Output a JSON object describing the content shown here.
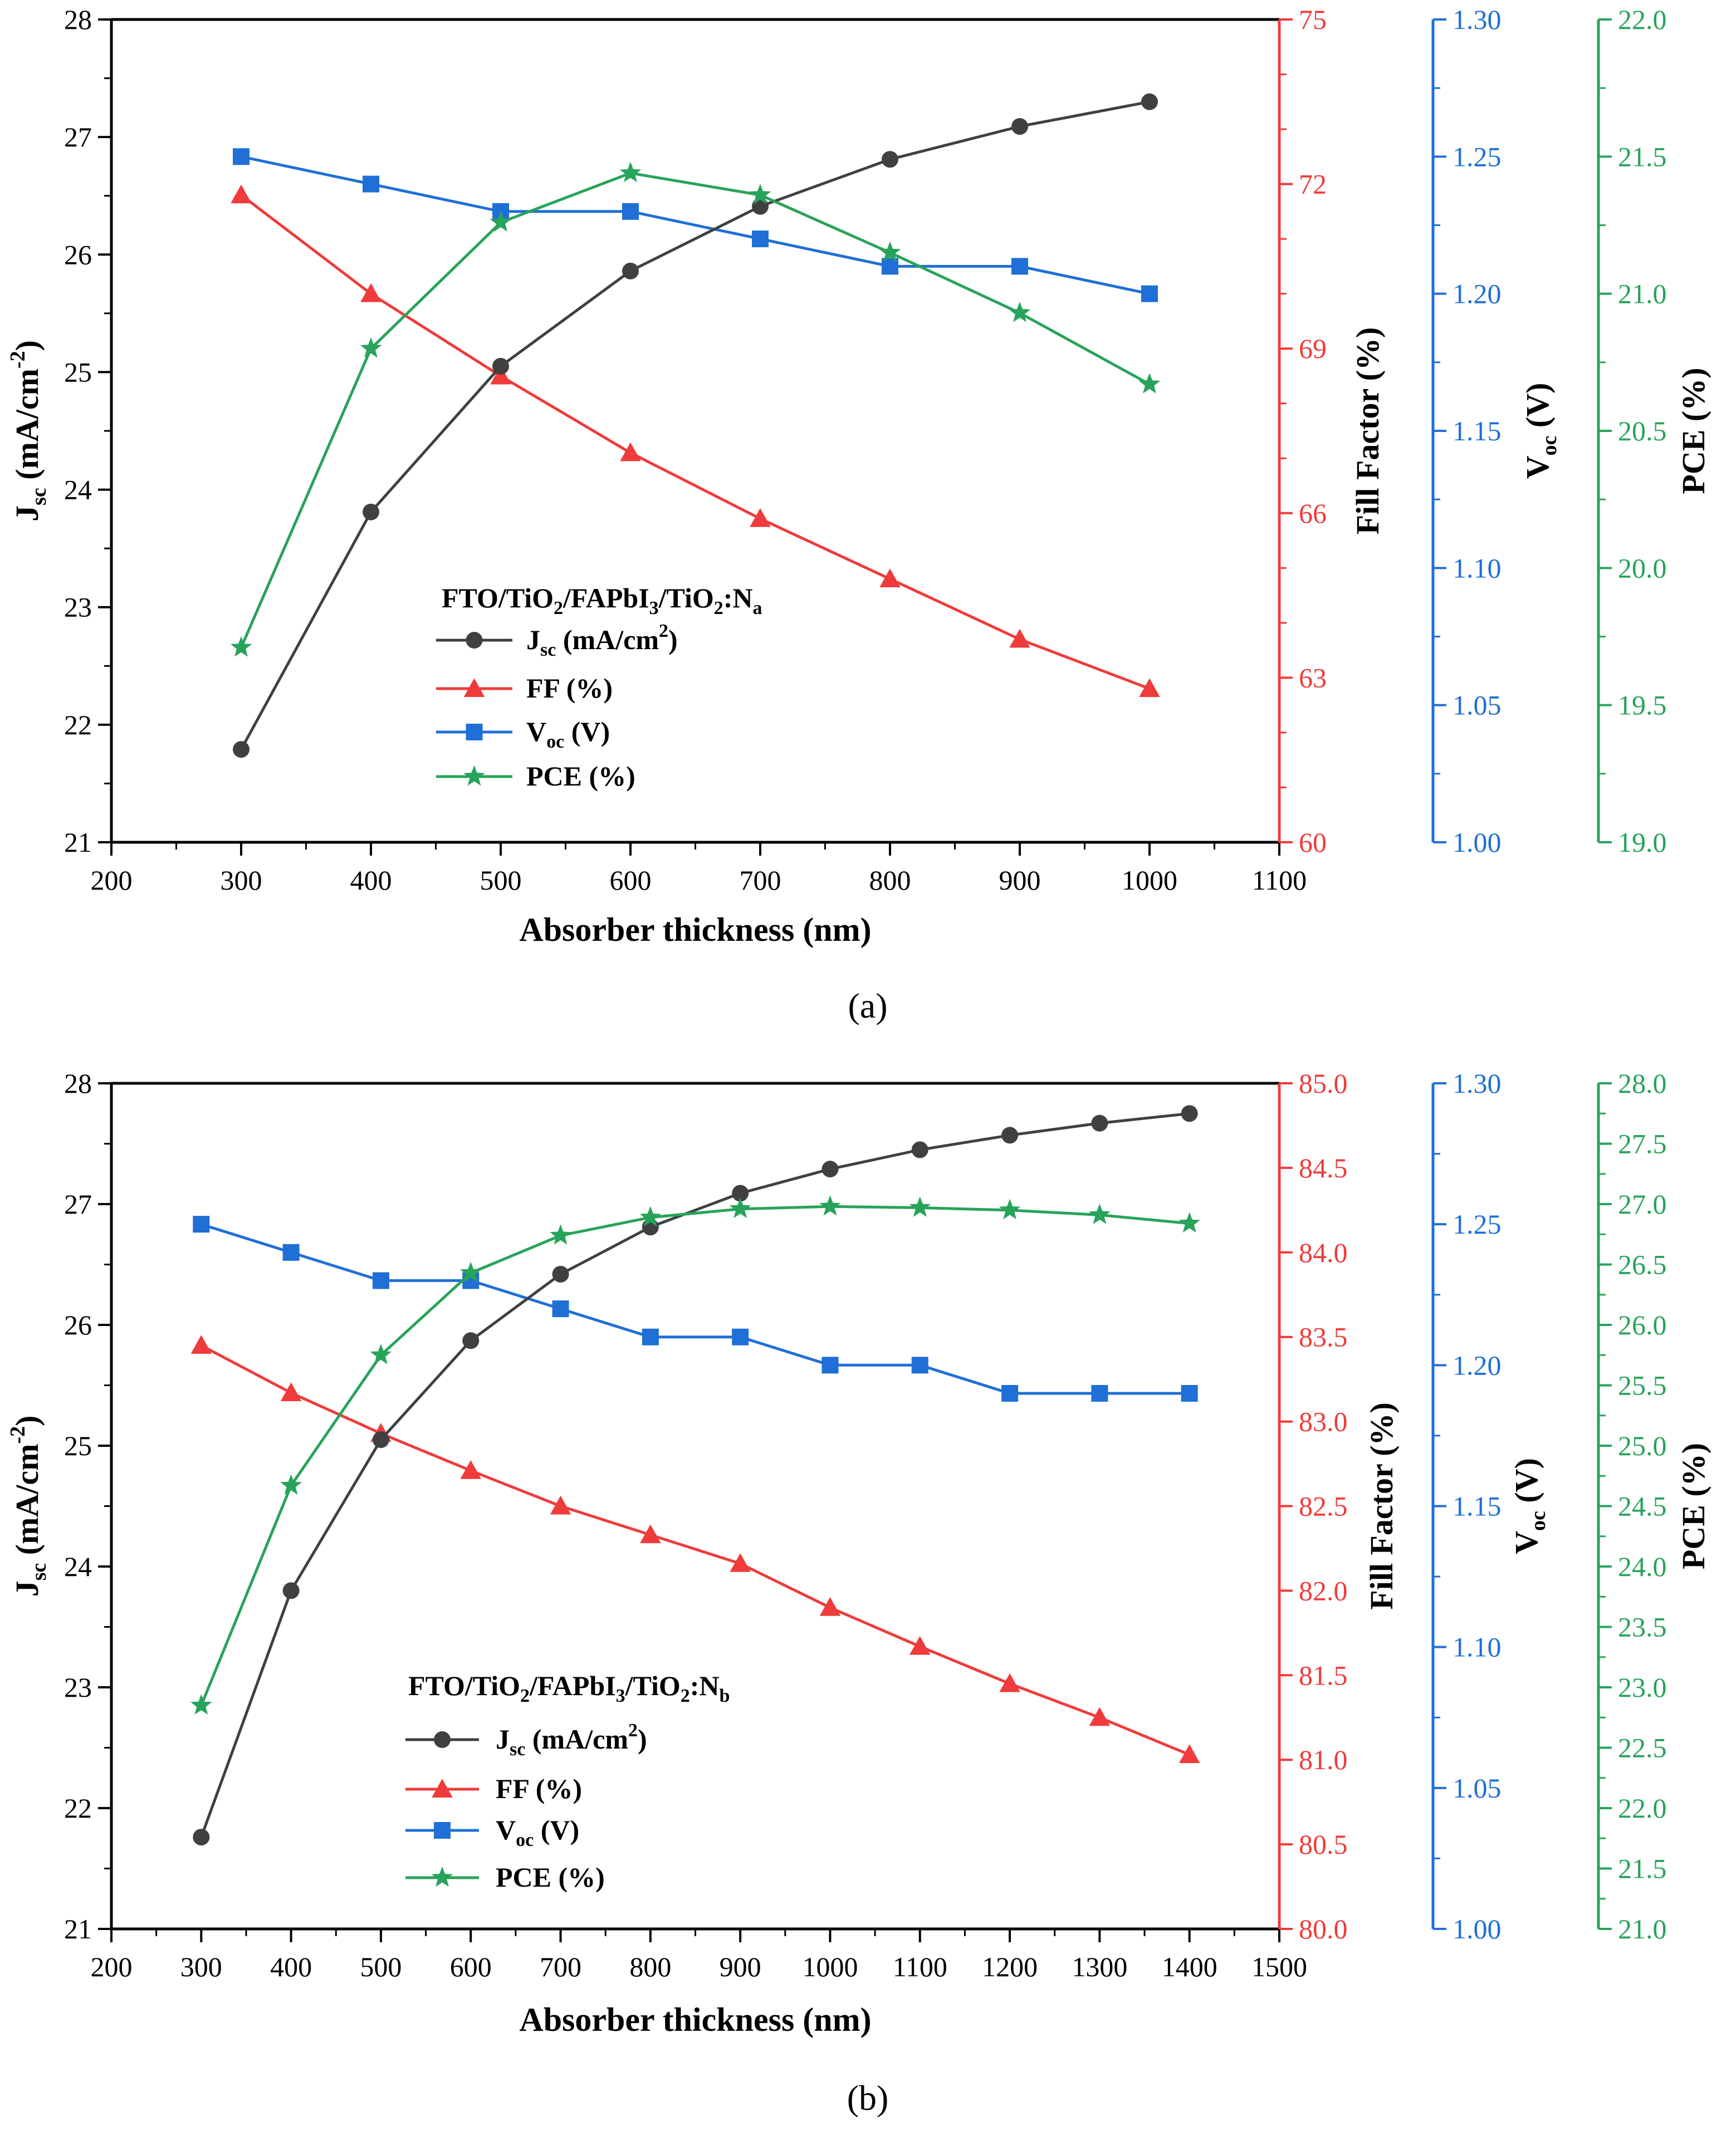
{
  "colors": {
    "jsc": "#404040",
    "ff": "#ef3b3b",
    "voc": "#1f6fd6",
    "pce": "#28a35a",
    "axis": "#000000"
  },
  "chart_data": [
    {
      "type": "line",
      "panel_label": "(a)",
      "xlabel": "Absorber thickness (nm)",
      "xlim": [
        200,
        1100
      ],
      "x_ticks": [
        200,
        300,
        400,
        500,
        600,
        700,
        800,
        900,
        1000,
        1100
      ],
      "x": [
        300,
        400,
        500,
        600,
        700,
        800,
        900,
        1000
      ],
      "legend": {
        "title_main": "FTO/TiO",
        "title_sub1": "2",
        "title_mid": "/FAPbI",
        "title_sub2": "3",
        "title_mid2": "/TiO",
        "title_sub3": "2",
        "title_mid3": ":N",
        "title_sub4": "a",
        "placement": "center"
      },
      "series": [
        {
          "key": "jsc",
          "axis_main": "J",
          "axis_sub": "sc",
          "axis_unit": " (mA/cm",
          "axis_sup": "-2",
          "axis_end": ")",
          "legend_main": "J",
          "legend_sub": "sc",
          "legend_unit": " (mA/cm",
          "legend_sup": "2",
          "legend_end": ")",
          "marker": "circle",
          "ylim": [
            21,
            28
          ],
          "ticks": [
            21,
            22,
            23,
            24,
            25,
            26,
            27,
            28
          ],
          "decimals": 0,
          "values": [
            21.79,
            23.81,
            25.05,
            25.86,
            26.41,
            26.81,
            27.09,
            27.3
          ]
        },
        {
          "key": "ff",
          "axis_label": "Fill Factor (%)",
          "legend_label": "FF (%)",
          "marker": "triangle",
          "ylim": [
            60,
            75
          ],
          "ticks": [
            60,
            63,
            66,
            69,
            72,
            75
          ],
          "decimals": 0,
          "values": [
            71.8,
            70.0,
            68.5,
            67.1,
            65.9,
            64.8,
            63.7,
            62.8
          ]
        },
        {
          "key": "voc",
          "axis_main": "V",
          "axis_sub": "oc",
          "axis_unit": " (V)",
          "legend_main": "V",
          "legend_sub": "oc",
          "legend_unit": " (V)",
          "marker": "square",
          "ylim": [
            1.0,
            1.3
          ],
          "ticks": [
            1.0,
            1.05,
            1.1,
            1.15,
            1.2,
            1.25,
            1.3
          ],
          "decimals": 2,
          "values": [
            1.25,
            1.24,
            1.23,
            1.23,
            1.22,
            1.21,
            1.21,
            1.2
          ]
        },
        {
          "key": "pce",
          "axis_label": "PCE (%)",
          "legend_label": "PCE (%)",
          "marker": "star",
          "ylim": [
            19.0,
            22.0
          ],
          "ticks": [
            19.0,
            19.5,
            20.0,
            20.5,
            21.0,
            21.5,
            22.0
          ],
          "decimals": 1,
          "values": [
            19.71,
            20.8,
            21.26,
            21.44,
            21.36,
            21.15,
            20.93,
            20.67
          ]
        }
      ]
    },
    {
      "type": "line",
      "panel_label": "(b)",
      "xlabel": "Absorber thickness (nm)",
      "xlim": [
        200,
        1500
      ],
      "x_ticks": [
        200,
        300,
        400,
        500,
        600,
        700,
        800,
        900,
        1000,
        1100,
        1200,
        1300,
        1400,
        1500
      ],
      "x": [
        300,
        400,
        500,
        600,
        700,
        800,
        900,
        1000,
        1100,
        1200,
        1300,
        1400
      ],
      "legend": {
        "title_main": "FTO/TiO",
        "title_sub1": "2",
        "title_mid": "/FAPbI",
        "title_sub2": "3",
        "title_mid2": "/TiO",
        "title_sub3": "2",
        "title_mid3": ":N",
        "title_sub4": "b",
        "placement": "lower-left"
      },
      "series": [
        {
          "key": "jsc",
          "axis_main": "J",
          "axis_sub": "sc",
          "axis_unit": " (mA/cm",
          "axis_sup": "-2",
          "axis_end": ")",
          "legend_main": "J",
          "legend_sub": "sc",
          "legend_unit": " (mA/cm",
          "legend_sup": "2",
          "legend_end": ")",
          "marker": "circle",
          "ylim": [
            21,
            28
          ],
          "ticks": [
            21,
            22,
            23,
            24,
            25,
            26,
            27,
            28
          ],
          "decimals": 0,
          "values": [
            21.76,
            23.8,
            25.05,
            25.87,
            26.42,
            26.81,
            27.09,
            27.29,
            27.45,
            27.57,
            27.67,
            27.75
          ]
        },
        {
          "key": "ff",
          "axis_label": "Fill Factor (%)",
          "legend_label": "FF (%)",
          "marker": "triangle",
          "ylim": [
            80.0,
            85.0
          ],
          "ticks": [
            80.0,
            80.5,
            81.0,
            81.5,
            82.0,
            82.5,
            83.0,
            83.5,
            84.0,
            84.5,
            85.0
          ],
          "decimals": 1,
          "values": [
            83.45,
            83.17,
            82.93,
            82.71,
            82.5,
            82.33,
            82.16,
            81.9,
            81.67,
            81.45,
            81.25,
            81.03
          ]
        },
        {
          "key": "voc",
          "axis_main": "V",
          "axis_sub": "oc",
          "axis_unit": " (V)",
          "legend_main": "V",
          "legend_sub": "oc",
          "legend_unit": " (V)",
          "marker": "square",
          "ylim": [
            1.0,
            1.3
          ],
          "ticks": [
            1.0,
            1.05,
            1.1,
            1.15,
            1.2,
            1.25,
            1.3
          ],
          "decimals": 2,
          "values": [
            1.25,
            1.24,
            1.23,
            1.23,
            1.22,
            1.21,
            1.21,
            1.2,
            1.2,
            1.19,
            1.19,
            1.19
          ]
        },
        {
          "key": "pce",
          "axis_label": "PCE (%)",
          "legend_label": "PCE (%)",
          "marker": "star",
          "ylim": [
            21.0,
            28.0
          ],
          "ticks": [
            21.0,
            21.5,
            22.0,
            22.5,
            23.0,
            23.5,
            24.0,
            24.5,
            25.0,
            25.5,
            26.0,
            26.5,
            27.0,
            27.5,
            28.0
          ],
          "decimals": 1,
          "values": [
            22.85,
            24.67,
            25.75,
            26.43,
            26.74,
            26.89,
            26.96,
            26.98,
            26.97,
            26.95,
            26.91,
            26.84
          ]
        }
      ]
    }
  ]
}
